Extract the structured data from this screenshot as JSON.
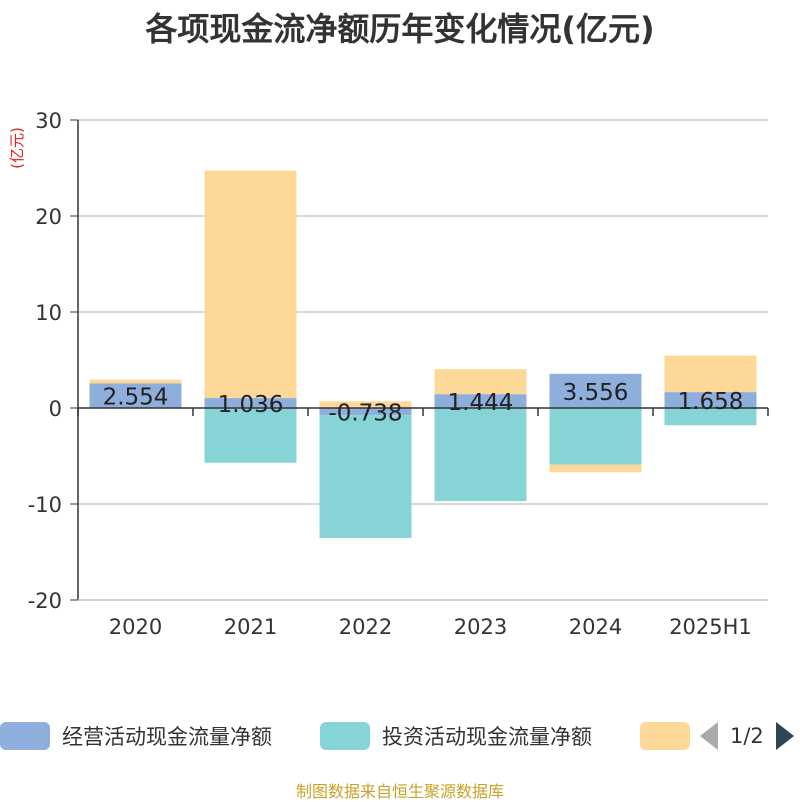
{
  "title": "各项现金流净额历年变化情况(亿元)",
  "source_note": "制图数据来自恒生聚源数据库",
  "legend_page": "1/2",
  "chart_data": {
    "type": "bar",
    "stacked": true,
    "title": "各项现金流净额历年变化情况(亿元)",
    "ylabel": "(亿元)",
    "ylim": [
      -20,
      30
    ],
    "yticks": [
      30,
      20,
      10,
      0,
      -10,
      -20
    ],
    "grid": true,
    "legend_position": "bottom",
    "categories": [
      "2020",
      "2021",
      "2022",
      "2023",
      "2024",
      "2025H1"
    ],
    "series": [
      {
        "name": "经营活动现金流量净额",
        "color": "#8eaedc",
        "values": [
          2.554,
          1.036,
          -0.738,
          1.444,
          3.556,
          1.658
        ],
        "labels": [
          "2.554",
          "1.036",
          "-0.738",
          "1.444",
          "3.556",
          "1.658"
        ]
      },
      {
        "name": "投资活动现金流量净额",
        "color": "#87d4d6",
        "values": [
          0.0,
          -5.7,
          -12.8,
          -9.7,
          -5.9,
          -1.8
        ]
      },
      {
        "name": "",
        "color": "#fed899",
        "values": [
          0.4,
          23.7,
          0.7,
          2.6,
          -0.8,
          3.8
        ]
      }
    ]
  }
}
